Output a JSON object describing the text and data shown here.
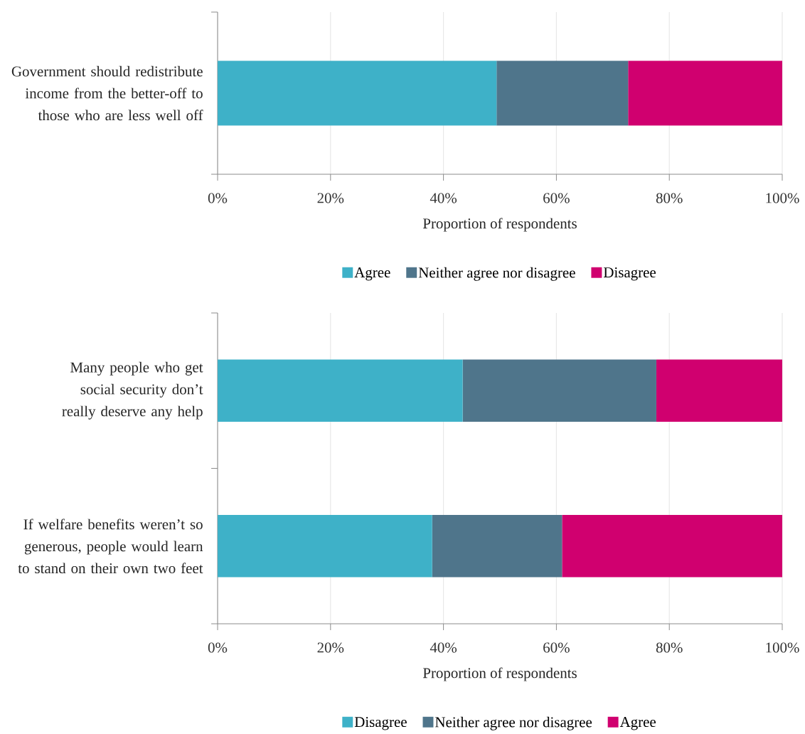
{
  "chart_data": [
    {
      "type": "bar",
      "orientation": "horizontal",
      "stacked": true,
      "categories": [
        "Government should redistribute income from the better-off to those who are less well off"
      ],
      "series": [
        {
          "name": "Agree",
          "color": "#3eb1c8",
          "values": [
            49.4
          ]
        },
        {
          "name": "Neither agree nor disagree",
          "color": "#4f758b",
          "values": [
            23.3
          ]
        },
        {
          "name": "Disagree",
          "color": "#d0006f",
          "values": [
            27.3
          ]
        }
      ],
      "xlim": [
        0,
        100
      ],
      "xticks": [
        {
          "value": 0,
          "label": "0%"
        },
        {
          "value": 20,
          "label": "20%"
        },
        {
          "value": 40,
          "label": "40%"
        },
        {
          "value": 60,
          "label": "60%"
        },
        {
          "value": 80,
          "label": "80%"
        },
        {
          "value": 100,
          "label": "100%"
        }
      ],
      "xlabel": "Proportion of respondents",
      "grid": "x",
      "legend": "bottom"
    },
    {
      "type": "bar",
      "orientation": "horizontal",
      "stacked": true,
      "categories": [
        "Many people who get social security don’t really deserve any help",
        "If welfare benefits weren’t so generous, people would learn to stand on their own two feet"
      ],
      "series": [
        {
          "name": "Disagree",
          "color": "#3eb1c8",
          "values": [
            43.4,
            38.0
          ]
        },
        {
          "name": "Neither agree nor disagree",
          "color": "#4f758b",
          "values": [
            34.3,
            23.0
          ]
        },
        {
          "name": "Agree",
          "color": "#d0006f",
          "values": [
            22.3,
            39.0
          ]
        }
      ],
      "xlim": [
        0,
        100
      ],
      "xticks": [
        {
          "value": 0,
          "label": "0%"
        },
        {
          "value": 20,
          "label": "20%"
        },
        {
          "value": 40,
          "label": "40%"
        },
        {
          "value": 60,
          "label": "60%"
        },
        {
          "value": 80,
          "label": "80%"
        },
        {
          "value": 100,
          "label": "100%"
        }
      ],
      "xlabel": "Proportion of respondents",
      "grid": "x",
      "legend": "bottom"
    }
  ]
}
